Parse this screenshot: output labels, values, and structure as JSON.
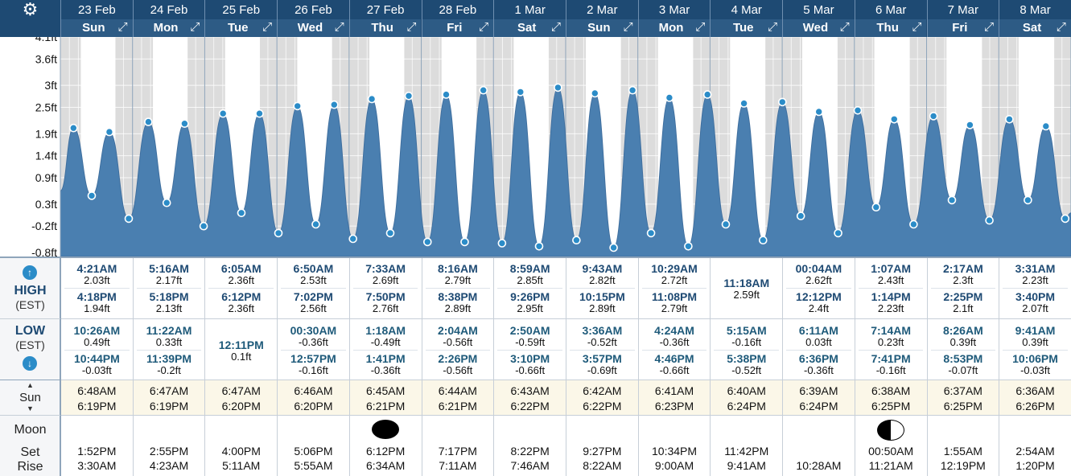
{
  "settings_icon": "gear-icon",
  "days": [
    {
      "date": "23 Feb",
      "weekday": "Sun"
    },
    {
      "date": "24 Feb",
      "weekday": "Mon"
    },
    {
      "date": "25 Feb",
      "weekday": "Tue"
    },
    {
      "date": "26 Feb",
      "weekday": "Wed"
    },
    {
      "date": "27 Feb",
      "weekday": "Thu"
    },
    {
      "date": "28 Feb",
      "weekday": "Fri"
    },
    {
      "date": "1 Mar",
      "weekday": "Sat"
    },
    {
      "date": "2 Mar",
      "weekday": "Sun"
    },
    {
      "date": "3 Mar",
      "weekday": "Mon"
    },
    {
      "date": "4 Mar",
      "weekday": "Tue"
    },
    {
      "date": "5 Mar",
      "weekday": "Wed"
    },
    {
      "date": "6 Mar",
      "weekday": "Thu"
    },
    {
      "date": "7 Mar",
      "weekday": "Fri"
    },
    {
      "date": "8 Mar",
      "weekday": "Sat"
    }
  ],
  "labels": {
    "high": "HIGH",
    "low": "LOW",
    "est": "(EST)",
    "sun": "Sun",
    "moon": "Moon",
    "set": "Set",
    "rise": "Rise"
  },
  "chart_data": {
    "type": "area",
    "title": "",
    "xlabel": "",
    "ylabel": "",
    "ylim": [
      -0.8,
      4.1
    ],
    "y_ticks": [
      "4.1ft",
      "3.6ft",
      "3ft",
      "2.5ft",
      "1.9ft",
      "1.4ft",
      "0.9ft",
      "0.3ft",
      "-0.2ft",
      "-0.8ft"
    ],
    "y_tick_values": [
      4.1,
      3.6,
      3.0,
      2.5,
      1.9,
      1.4,
      0.9,
      0.3,
      -0.2,
      -0.8
    ],
    "color": "#4a7fb0",
    "series": [
      {
        "points": [
          {
            "day": 0,
            "time": "4:21AM",
            "ft": 2.03
          },
          {
            "day": 0,
            "time": "10:26AM",
            "ft": 0.49
          },
          {
            "day": 0,
            "time": "4:18PM",
            "ft": 1.94
          },
          {
            "day": 0,
            "time": "10:44PM",
            "ft": -0.03
          },
          {
            "day": 1,
            "time": "5:16AM",
            "ft": 2.17
          },
          {
            "day": 1,
            "time": "11:22AM",
            "ft": 0.33
          },
          {
            "day": 1,
            "time": "5:18PM",
            "ft": 2.13
          },
          {
            "day": 1,
            "time": "11:39PM",
            "ft": -0.2
          },
          {
            "day": 2,
            "time": "6:05AM",
            "ft": 2.36
          },
          {
            "day": 2,
            "time": "12:11PM",
            "ft": 0.1
          },
          {
            "day": 2,
            "time": "6:12PM",
            "ft": 2.36
          },
          {
            "day": 3,
            "time": "00:30AM",
            "ft": -0.36
          },
          {
            "day": 3,
            "time": "6:50AM",
            "ft": 2.53
          },
          {
            "day": 3,
            "time": "12:57PM",
            "ft": -0.16
          },
          {
            "day": 3,
            "time": "7:02PM",
            "ft": 2.56
          },
          {
            "day": 4,
            "time": "1:18AM",
            "ft": -0.49
          },
          {
            "day": 4,
            "time": "7:33AM",
            "ft": 2.69
          },
          {
            "day": 4,
            "time": "1:41PM",
            "ft": -0.36
          },
          {
            "day": 4,
            "time": "7:50PM",
            "ft": 2.76
          },
          {
            "day": 5,
            "time": "2:04AM",
            "ft": -0.56
          },
          {
            "day": 5,
            "time": "8:16AM",
            "ft": 2.79
          },
          {
            "day": 5,
            "time": "2:26PM",
            "ft": -0.56
          },
          {
            "day": 5,
            "time": "8:38PM",
            "ft": 2.89
          },
          {
            "day": 6,
            "time": "2:50AM",
            "ft": -0.59
          },
          {
            "day": 6,
            "time": "8:59AM",
            "ft": 2.85
          },
          {
            "day": 6,
            "time": "3:10PM",
            "ft": -0.66
          },
          {
            "day": 6,
            "time": "9:26PM",
            "ft": 2.95
          },
          {
            "day": 7,
            "time": "3:36AM",
            "ft": -0.52
          },
          {
            "day": 7,
            "time": "9:43AM",
            "ft": 2.82
          },
          {
            "day": 7,
            "time": "3:57PM",
            "ft": -0.69
          },
          {
            "day": 7,
            "time": "10:15PM",
            "ft": 2.89
          },
          {
            "day": 8,
            "time": "4:24AM",
            "ft": -0.36
          },
          {
            "day": 8,
            "time": "10:29AM",
            "ft": 2.72
          },
          {
            "day": 8,
            "time": "4:46PM",
            "ft": -0.66
          },
          {
            "day": 8,
            "time": "11:08PM",
            "ft": 2.79
          },
          {
            "day": 9,
            "time": "5:15AM",
            "ft": -0.16
          },
          {
            "day": 9,
            "time": "11:18AM",
            "ft": 2.59
          },
          {
            "day": 9,
            "time": "5:38PM",
            "ft": -0.52
          },
          {
            "day": 10,
            "time": "00:04AM",
            "ft": 2.62
          },
          {
            "day": 10,
            "time": "6:11AM",
            "ft": 0.03
          },
          {
            "day": 10,
            "time": "12:12PM",
            "ft": 2.4
          },
          {
            "day": 10,
            "time": "6:36PM",
            "ft": -0.36
          },
          {
            "day": 11,
            "time": "1:07AM",
            "ft": 2.43
          },
          {
            "day": 11,
            "time": "7:14AM",
            "ft": 0.23
          },
          {
            "day": 11,
            "time": "1:14PM",
            "ft": 2.23
          },
          {
            "day": 11,
            "time": "7:41PM",
            "ft": -0.16
          },
          {
            "day": 12,
            "time": "2:17AM",
            "ft": 2.3
          },
          {
            "day": 12,
            "time": "8:26AM",
            "ft": 0.39
          },
          {
            "day": 12,
            "time": "2:25PM",
            "ft": 2.1
          },
          {
            "day": 12,
            "time": "8:53PM",
            "ft": -0.07
          },
          {
            "day": 13,
            "time": "3:31AM",
            "ft": 2.23
          },
          {
            "day": 13,
            "time": "9:41AM",
            "ft": 0.39
          },
          {
            "day": 13,
            "time": "3:40PM",
            "ft": 2.07
          },
          {
            "day": 13,
            "time": "10:06PM",
            "ft": -0.03
          }
        ]
      }
    ],
    "grid": true
  },
  "high": [
    [
      {
        "t": "4:21AM",
        "v": "2.03ft"
      },
      {
        "t": "4:18PM",
        "v": "1.94ft"
      }
    ],
    [
      {
        "t": "5:16AM",
        "v": "2.17ft"
      },
      {
        "t": "5:18PM",
        "v": "2.13ft"
      }
    ],
    [
      {
        "t": "6:05AM",
        "v": "2.36ft"
      },
      {
        "t": "6:12PM",
        "v": "2.36ft"
      }
    ],
    [
      {
        "t": "6:50AM",
        "v": "2.53ft"
      },
      {
        "t": "7:02PM",
        "v": "2.56ft"
      }
    ],
    [
      {
        "t": "7:33AM",
        "v": "2.69ft"
      },
      {
        "t": "7:50PM",
        "v": "2.76ft"
      }
    ],
    [
      {
        "t": "8:16AM",
        "v": "2.79ft"
      },
      {
        "t": "8:38PM",
        "v": "2.89ft"
      }
    ],
    [
      {
        "t": "8:59AM",
        "v": "2.85ft"
      },
      {
        "t": "9:26PM",
        "v": "2.95ft"
      }
    ],
    [
      {
        "t": "9:43AM",
        "v": "2.82ft"
      },
      {
        "t": "10:15PM",
        "v": "2.89ft"
      }
    ],
    [
      {
        "t": "10:29AM",
        "v": "2.72ft"
      },
      {
        "t": "11:08PM",
        "v": "2.79ft"
      }
    ],
    [
      {
        "t": "11:18AM",
        "v": "2.59ft"
      }
    ],
    [
      {
        "t": "00:04AM",
        "v": "2.62ft"
      },
      {
        "t": "12:12PM",
        "v": "2.4ft"
      }
    ],
    [
      {
        "t": "1:07AM",
        "v": "2.43ft"
      },
      {
        "t": "1:14PM",
        "v": "2.23ft"
      }
    ],
    [
      {
        "t": "2:17AM",
        "v": "2.3ft"
      },
      {
        "t": "2:25PM",
        "v": "2.1ft"
      }
    ],
    [
      {
        "t": "3:31AM",
        "v": "2.23ft"
      },
      {
        "t": "3:40PM",
        "v": "2.07ft"
      }
    ]
  ],
  "low": [
    [
      {
        "t": "10:26AM",
        "v": "0.49ft"
      },
      {
        "t": "10:44PM",
        "v": "-0.03ft"
      }
    ],
    [
      {
        "t": "11:22AM",
        "v": "0.33ft"
      },
      {
        "t": "11:39PM",
        "v": "-0.2ft"
      }
    ],
    [
      {
        "t": "12:11PM",
        "v": "0.1ft"
      }
    ],
    [
      {
        "t": "00:30AM",
        "v": "-0.36ft"
      },
      {
        "t": "12:57PM",
        "v": "-0.16ft"
      }
    ],
    [
      {
        "t": "1:18AM",
        "v": "-0.49ft"
      },
      {
        "t": "1:41PM",
        "v": "-0.36ft"
      }
    ],
    [
      {
        "t": "2:04AM",
        "v": "-0.56ft"
      },
      {
        "t": "2:26PM",
        "v": "-0.56ft"
      }
    ],
    [
      {
        "t": "2:50AM",
        "v": "-0.59ft"
      },
      {
        "t": "3:10PM",
        "v": "-0.66ft"
      }
    ],
    [
      {
        "t": "3:36AM",
        "v": "-0.52ft"
      },
      {
        "t": "3:57PM",
        "v": "-0.69ft"
      }
    ],
    [
      {
        "t": "4:24AM",
        "v": "-0.36ft"
      },
      {
        "t": "4:46PM",
        "v": "-0.66ft"
      }
    ],
    [
      {
        "t": "5:15AM",
        "v": "-0.16ft"
      },
      {
        "t": "5:38PM",
        "v": "-0.52ft"
      }
    ],
    [
      {
        "t": "6:11AM",
        "v": "0.03ft"
      },
      {
        "t": "6:36PM",
        "v": "-0.36ft"
      }
    ],
    [
      {
        "t": "7:14AM",
        "v": "0.23ft"
      },
      {
        "t": "7:41PM",
        "v": "-0.16ft"
      }
    ],
    [
      {
        "t": "8:26AM",
        "v": "0.39ft"
      },
      {
        "t": "8:53PM",
        "v": "-0.07ft"
      }
    ],
    [
      {
        "t": "9:41AM",
        "v": "0.39ft"
      },
      {
        "t": "10:06PM",
        "v": "-0.03ft"
      }
    ]
  ],
  "sun": [
    {
      "rise": "6:48AM",
      "set": "6:19PM"
    },
    {
      "rise": "6:47AM",
      "set": "6:19PM"
    },
    {
      "rise": "6:47AM",
      "set": "6:20PM"
    },
    {
      "rise": "6:46AM",
      "set": "6:20PM"
    },
    {
      "rise": "6:45AM",
      "set": "6:21PM"
    },
    {
      "rise": "6:44AM",
      "set": "6:21PM"
    },
    {
      "rise": "6:43AM",
      "set": "6:22PM"
    },
    {
      "rise": "6:42AM",
      "set": "6:22PM"
    },
    {
      "rise": "6:41AM",
      "set": "6:23PM"
    },
    {
      "rise": "6:40AM",
      "set": "6:24PM"
    },
    {
      "rise": "6:39AM",
      "set": "6:24PM"
    },
    {
      "rise": "6:38AM",
      "set": "6:25PM"
    },
    {
      "rise": "6:37AM",
      "set": "6:25PM"
    },
    {
      "rise": "6:36AM",
      "set": "6:26PM"
    }
  ],
  "moon": [
    {
      "set": "1:52PM",
      "rise": "3:30AM",
      "phase": ""
    },
    {
      "set": "2:55PM",
      "rise": "4:23AM",
      "phase": ""
    },
    {
      "set": "4:00PM",
      "rise": "5:11AM",
      "phase": ""
    },
    {
      "set": "5:06PM",
      "rise": "5:55AM",
      "phase": ""
    },
    {
      "set": "6:12PM",
      "rise": "6:34AM",
      "phase": "new-moon-icon"
    },
    {
      "set": "7:17PM",
      "rise": "7:11AM",
      "phase": ""
    },
    {
      "set": "8:22PM",
      "rise": "7:46AM",
      "phase": ""
    },
    {
      "set": "9:27PM",
      "rise": "8:22AM",
      "phase": ""
    },
    {
      "set": "10:34PM",
      "rise": "9:00AM",
      "phase": ""
    },
    {
      "set": "11:42PM",
      "rise": "9:41AM",
      "phase": ""
    },
    {
      "set": "",
      "rise": "10:28AM",
      "phase": ""
    },
    {
      "set": "00:50AM",
      "rise": "11:21AM",
      "phase": "first-quarter-moon-icon"
    },
    {
      "set": "1:55AM",
      "rise": "12:19PM",
      "phase": ""
    },
    {
      "set": "2:54AM",
      "rise": "1:20PM",
      "phase": ""
    }
  ]
}
